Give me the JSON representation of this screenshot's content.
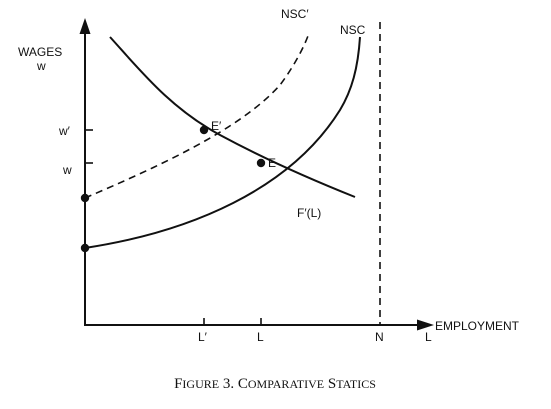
{
  "axes": {
    "y_label_line1": "WAGES",
    "y_label_line2": "w",
    "x_label": "EMPLOYMENT",
    "y_ticks": [
      "w′",
      "w"
    ],
    "x_ticks": [
      "L′",
      "L",
      "N",
      "L"
    ]
  },
  "curves": {
    "nsc_shifted": "NSC′",
    "nsc": "NSC",
    "demand_prefix": "F",
    "demand_suffix": "′(L)"
  },
  "points": {
    "eq_shifted": "E′",
    "eq": "E"
  },
  "caption": {
    "first": "F",
    "small1": "IGURE",
    "number": " 3.  ",
    "c1": "C",
    "small2": "OMPARATIVE",
    "space": " ",
    "c2": "S",
    "small3": "TATICS"
  }
}
